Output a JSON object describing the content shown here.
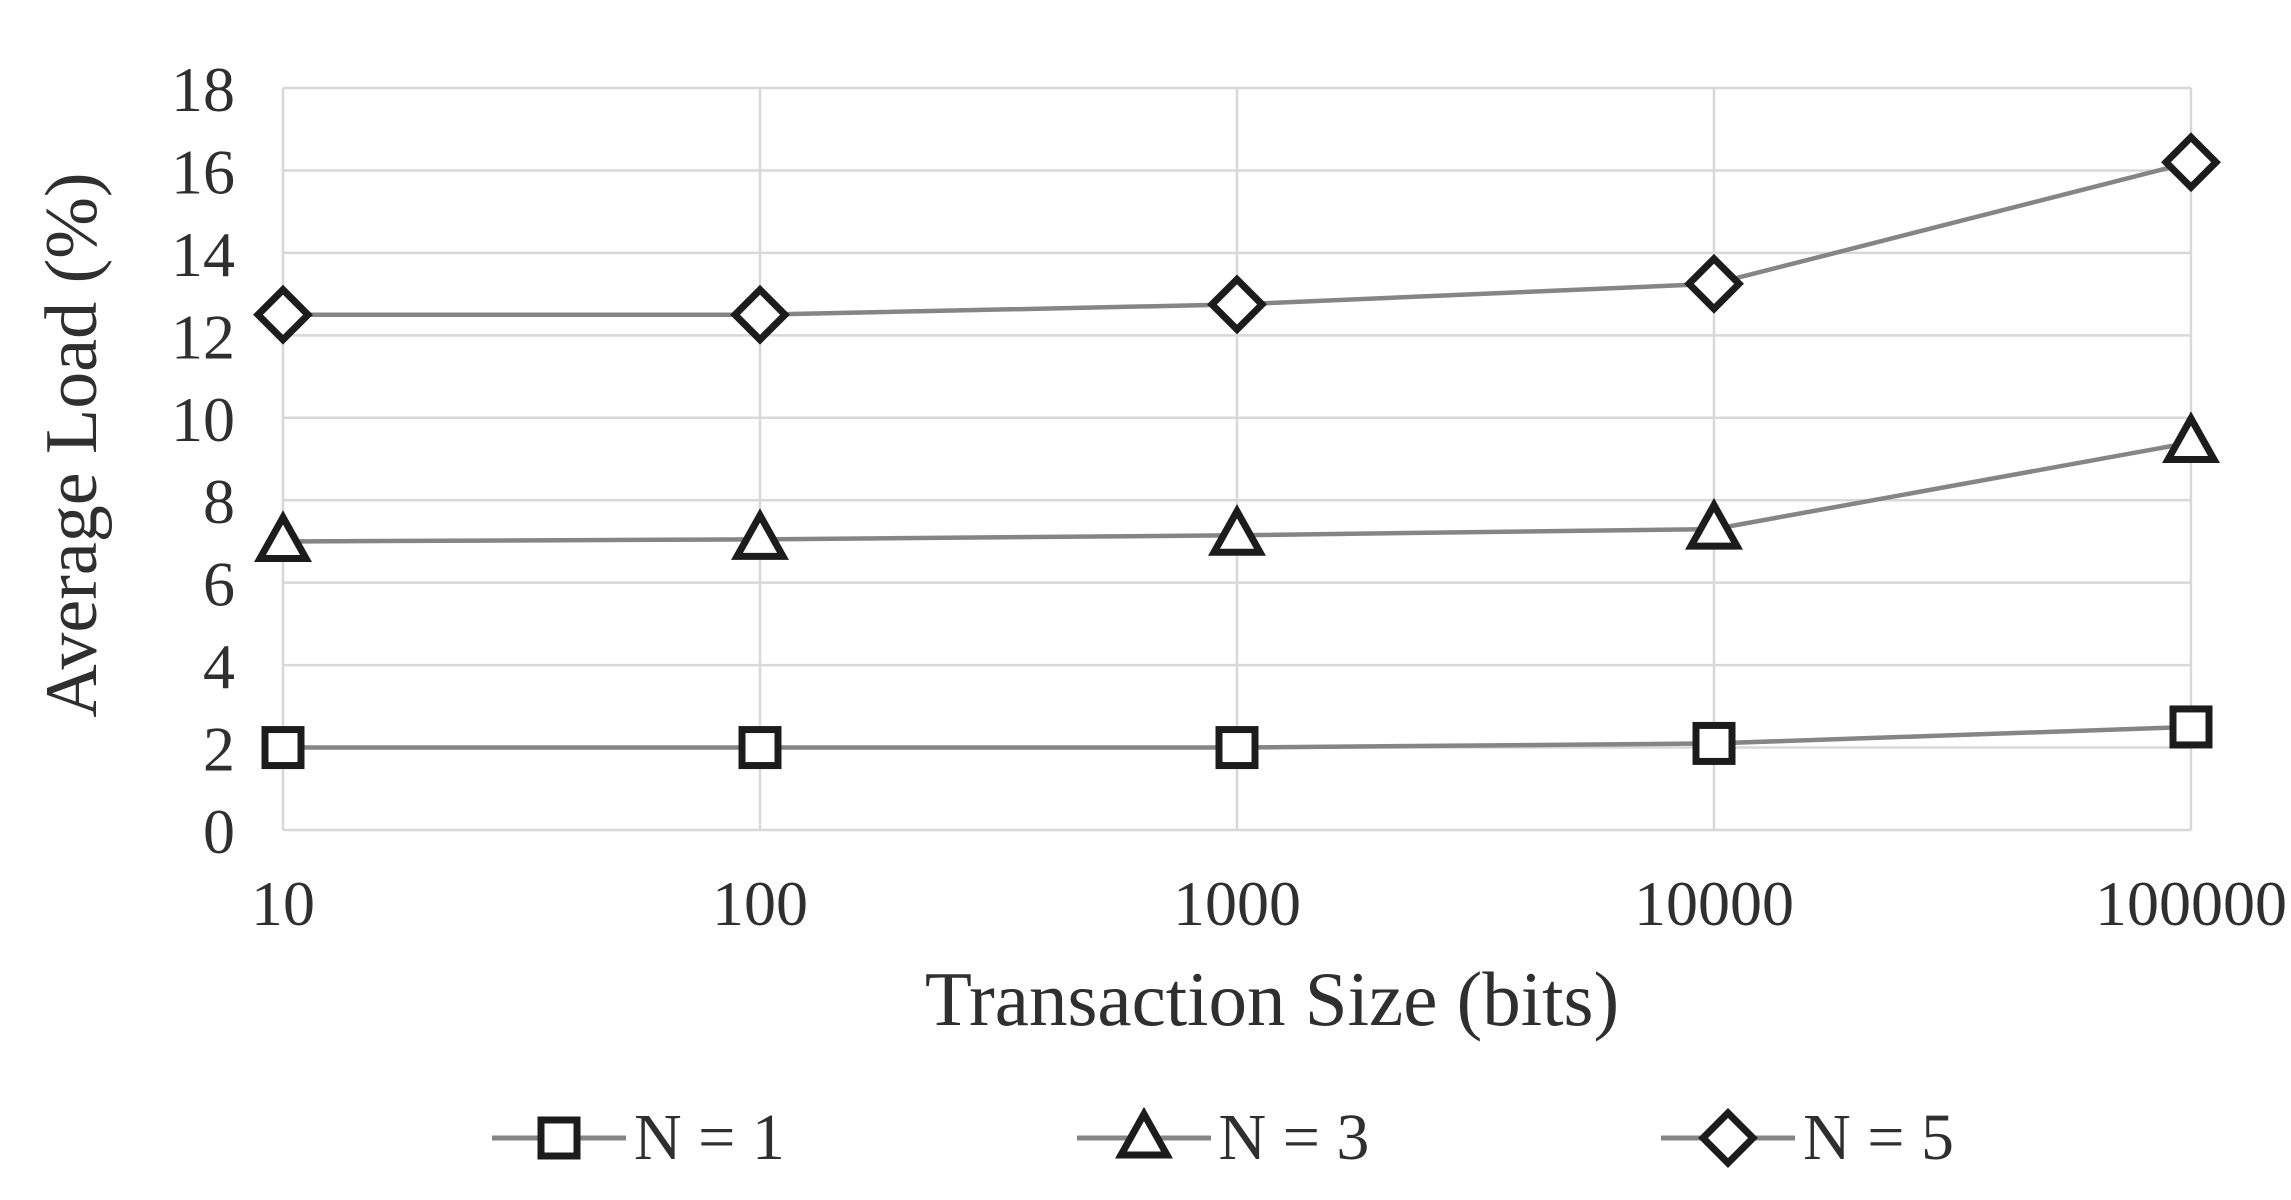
{
  "page": {
    "background": "#ffffff"
  },
  "chart_data": {
    "type": "line",
    "title": "",
    "xlabel": "Transaction Size (bits)",
    "ylabel": "Average Load (%)",
    "x_scale": "log",
    "x": [
      10,
      100,
      1000,
      10000,
      100000
    ],
    "x_tick_labels": [
      "10",
      "100",
      "1000",
      "10000",
      "100000"
    ],
    "y_ticks": [
      0,
      2,
      4,
      6,
      8,
      10,
      12,
      14,
      16,
      18
    ],
    "ylim": [
      0,
      18
    ],
    "xlim": [
      10,
      100000
    ],
    "grid": true,
    "legend_position": "bottom",
    "series": [
      {
        "name": "N = 1",
        "marker": "square",
        "values": [
          2.0,
          2.0,
          2.0,
          2.1,
          2.5
        ]
      },
      {
        "name": "N = 3",
        "marker": "triangle",
        "values": [
          7.0,
          7.05,
          7.15,
          7.3,
          9.4
        ]
      },
      {
        "name": "N = 5",
        "marker": "diamond",
        "values": [
          12.5,
          12.5,
          12.75,
          13.25,
          16.2
        ]
      }
    ],
    "colors": {
      "line": "#858585",
      "marker_stroke": "#1c1c1c",
      "marker_fill": "#ffffff",
      "grid": "#d8d8d8",
      "text": "#2f2f2f"
    }
  }
}
